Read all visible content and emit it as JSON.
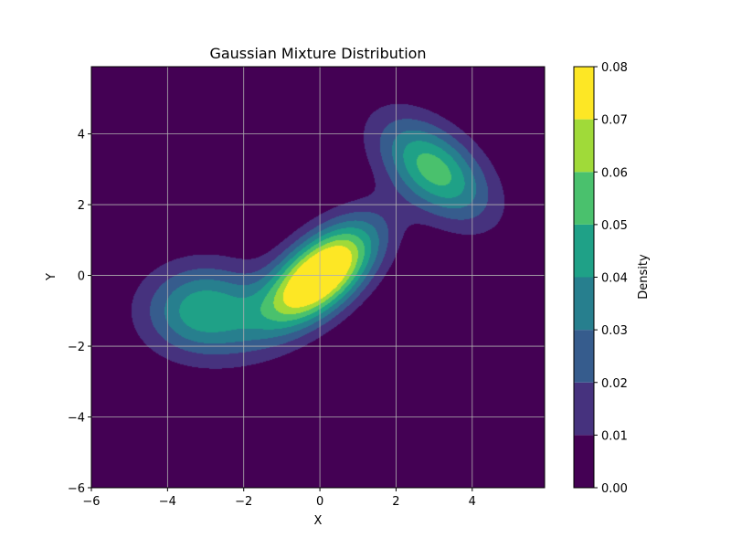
{
  "chart_data": {
    "type": "contourf",
    "title": "Gaussian Mixture Distribution",
    "xlabel": "X",
    "ylabel": "Y",
    "xlim": [
      -6,
      5.9
    ],
    "ylim": [
      -6,
      5.9
    ],
    "x_ticks": [
      -6,
      -4,
      -2,
      0,
      2,
      4
    ],
    "y_ticks": [
      -6,
      -4,
      -2,
      0,
      2,
      4
    ],
    "x_tick_labels": [
      "−6",
      "−4",
      "−2",
      "0",
      "2",
      "4"
    ],
    "y_tick_labels": [
      "−6",
      "−4",
      "−2",
      "0",
      "2",
      "4"
    ],
    "grid": true,
    "colormap": "viridis",
    "components": [
      {
        "mean": [
          0,
          0
        ],
        "cov": [
          [
            1.0,
            0.6
          ],
          [
            0.6,
            1.0
          ]
        ],
        "weight": 0.5
      },
      {
        "mean": [
          -3,
          -1
        ],
        "cov": [
          [
            1.2,
            0.0
          ],
          [
            0.0,
            0.8
          ]
        ],
        "weight": 0.3
      },
      {
        "mean": [
          3,
          3
        ],
        "cov": [
          [
            1.0,
            -0.5
          ],
          [
            -0.5,
            1.0
          ]
        ],
        "weight": 0.3
      }
    ],
    "colorbar": {
      "label": "Density",
      "levels": [
        0.0,
        0.01,
        0.02,
        0.03,
        0.04,
        0.05,
        0.06,
        0.07,
        0.08
      ],
      "tick_labels": [
        "0.00",
        "0.01",
        "0.02",
        "0.03",
        "0.04",
        "0.05",
        "0.06",
        "0.07",
        "0.08"
      ],
      "colors": [
        "#440154",
        "#46327e",
        "#365c8d",
        "#277f8e",
        "#1fa187",
        "#4ac16d",
        "#a0da39",
        "#fde725"
      ]
    }
  }
}
